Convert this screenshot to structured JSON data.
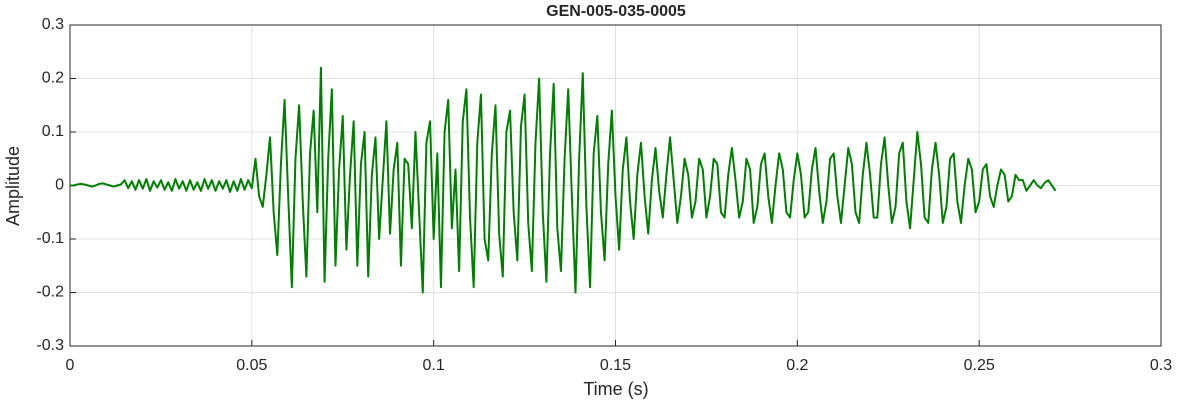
{
  "chart_data": {
    "type": "line",
    "title": "GEN-005-035-0005",
    "xlabel": "Time (s)",
    "ylabel": "Amplitude",
    "color": "#008000",
    "grid": true,
    "xlim": [
      0,
      0.3
    ],
    "xticks": [
      0,
      0.05,
      0.1,
      0.15,
      0.2,
      0.25,
      0.3
    ],
    "ylim": [
      -0.3,
      0.3
    ],
    "yticks": [
      -0.3,
      -0.2,
      -0.1,
      0,
      0.1,
      0.2,
      0.3
    ],
    "x": [
      0,
      0.001,
      0.002,
      0.003,
      0.004,
      0.005,
      0.006,
      0.007,
      0.008,
      0.009,
      0.01,
      0.011,
      0.012,
      0.013,
      0.014,
      0.015,
      0.016,
      0.017,
      0.018,
      0.019,
      0.02,
      0.021,
      0.022,
      0.023,
      0.024,
      0.025,
      0.026,
      0.027,
      0.028,
      0.029,
      0.03,
      0.031,
      0.032,
      0.033,
      0.034,
      0.035,
      0.036,
      0.037,
      0.038,
      0.039,
      0.04,
      0.041,
      0.042,
      0.043,
      0.044,
      0.045,
      0.046,
      0.047,
      0.048,
      0.049,
      0.05,
      0.051,
      0.052,
      0.053,
      0.054,
      0.055,
      0.056,
      0.057,
      0.058,
      0.059,
      0.06,
      0.061,
      0.062,
      0.063,
      0.064,
      0.065,
      0.066,
      0.067,
      0.068,
      0.069,
      0.07,
      0.071,
      0.072,
      0.073,
      0.074,
      0.075,
      0.076,
      0.077,
      0.078,
      0.079,
      0.08,
      0.081,
      0.082,
      0.083,
      0.084,
      0.085,
      0.086,
      0.087,
      0.088,
      0.089,
      0.09,
      0.091,
      0.092,
      0.093,
      0.094,
      0.095,
      0.096,
      0.097,
      0.098,
      0.099,
      0.1,
      0.101,
      0.102,
      0.103,
      0.104,
      0.105,
      0.106,
      0.107,
      0.108,
      0.109,
      0.11,
      0.111,
      0.112,
      0.113,
      0.114,
      0.115,
      0.116,
      0.117,
      0.118,
      0.119,
      0.12,
      0.121,
      0.122,
      0.123,
      0.124,
      0.125,
      0.126,
      0.127,
      0.128,
      0.129,
      0.13,
      0.131,
      0.132,
      0.133,
      0.134,
      0.135,
      0.136,
      0.137,
      0.138,
      0.139,
      0.14,
      0.141,
      0.142,
      0.143,
      0.144,
      0.145,
      0.146,
      0.147,
      0.148,
      0.149,
      0.15,
      0.151,
      0.152,
      0.153,
      0.154,
      0.155,
      0.156,
      0.157,
      0.158,
      0.159,
      0.16,
      0.161,
      0.162,
      0.163,
      0.164,
      0.165,
      0.166,
      0.167,
      0.168,
      0.169,
      0.17,
      0.171,
      0.172,
      0.173,
      0.174,
      0.175,
      0.176,
      0.177,
      0.178,
      0.179,
      0.18,
      0.181,
      0.182,
      0.183,
      0.184,
      0.185,
      0.186,
      0.187,
      0.188,
      0.189,
      0.19,
      0.191,
      0.192,
      0.193,
      0.194,
      0.195,
      0.196,
      0.197,
      0.198,
      0.199,
      0.2,
      0.201,
      0.202,
      0.203,
      0.204,
      0.205,
      0.206,
      0.207,
      0.208,
      0.209,
      0.21,
      0.211,
      0.212,
      0.213,
      0.214,
      0.215,
      0.216,
      0.217,
      0.218,
      0.219,
      0.22,
      0.221,
      0.222,
      0.223,
      0.224,
      0.225,
      0.226,
      0.227,
      0.228,
      0.229,
      0.23,
      0.231,
      0.232,
      0.233,
      0.234,
      0.235,
      0.236,
      0.237,
      0.238,
      0.239,
      0.24,
      0.241,
      0.242,
      0.243,
      0.244,
      0.245,
      0.246,
      0.247,
      0.248,
      0.249,
      0.25,
      0.251,
      0.252,
      0.253,
      0.254,
      0.255,
      0.256,
      0.257,
      0.258,
      0.259,
      0.26,
      0.261,
      0.262,
      0.263,
      0.264,
      0.265,
      0.266,
      0.267,
      0.268,
      0.269,
      0.27,
      0.271
    ],
    "values": [
      0,
      0,
      0.002,
      0.003,
      0.002,
      0,
      -0.002,
      0,
      0.003,
      0.004,
      0.002,
      0,
      -0.002,
      0,
      0.002,
      0.01,
      -0.005,
      0.008,
      -0.008,
      0.01,
      -0.006,
      0.012,
      -0.01,
      0.008,
      -0.004,
      0.01,
      -0.008,
      0.006,
      -0.01,
      0.012,
      -0.006,
      0.008,
      -0.01,
      0.01,
      -0.008,
      0.006,
      -0.01,
      0.012,
      -0.006,
      0.01,
      -0.01,
      0.008,
      -0.006,
      0.01,
      -0.012,
      0.008,
      -0.01,
      0.012,
      -0.008,
      0.01,
      -0.005,
      0.05,
      -0.02,
      -0.04,
      0.02,
      0.09,
      -0.05,
      -0.13,
      0.04,
      0.16,
      -0.02,
      -0.19,
      0.05,
      0.15,
      -0.03,
      -0.17,
      0.06,
      0.14,
      -0.05,
      0.22,
      -0.18,
      0.05,
      0.18,
      -0.15,
      0.03,
      0.13,
      -0.12,
      0.02,
      0.12,
      -0.15,
      0.04,
      0.1,
      -0.17,
      0.02,
      0.09,
      -0.1,
      0.01,
      0.12,
      -0.09,
      0.03,
      0.08,
      -0.15,
      0.05,
      0.04,
      -0.08,
      0.1,
      -0.05,
      -0.2,
      0.08,
      0.12,
      -0.1,
      0.06,
      -0.19,
      0.1,
      0.16,
      -0.08,
      0.03,
      -0.16,
      0.12,
      0.18,
      -0.06,
      -0.19,
      0.08,
      0.17,
      -0.1,
      -0.14,
      0.06,
      0.15,
      -0.09,
      -0.17,
      0.1,
      0.14,
      -0.05,
      -0.14,
      0.11,
      0.17,
      -0.07,
      -0.16,
      0.08,
      0.2,
      -0.05,
      -0.18,
      0.06,
      0.19,
      -0.08,
      -0.16,
      0.05,
      0.18,
      -0.02,
      -0.2,
      0.05,
      0.21,
      -0.04,
      -0.19,
      0.06,
      0.13,
      -0.05,
      -0.14,
      0.04,
      0.14,
      -0.02,
      -0.12,
      0.03,
      0.09,
      -0.03,
      -0.1,
      0.02,
      0.08,
      -0.02,
      -0.09,
      0.01,
      0.07,
      -0.01,
      -0.06,
      0.02,
      0.09,
      0.01,
      -0.07,
      -0.02,
      0.05,
      0.02,
      -0.06,
      -0.03,
      0.05,
      0.03,
      -0.06,
      -0.02,
      0.05,
      0.04,
      -0.05,
      -0.06,
      0.02,
      0.07,
      0.01,
      -0.06,
      -0.03,
      0.05,
      0.03,
      -0.07,
      -0.04,
      0.04,
      0.06,
      -0.02,
      -0.07,
      0,
      0.06,
      0.03,
      -0.05,
      -0.06,
      0.01,
      0.06,
      0.02,
      -0.06,
      -0.05,
      0.03,
      0.07,
      -0.01,
      -0.07,
      -0.03,
      0.05,
      0.06,
      -0.02,
      -0.07,
      0,
      0.07,
      0.04,
      -0.05,
      -0.07,
      0.02,
      0.08,
      0.02,
      -0.06,
      -0.06,
      0.04,
      0.09,
      0,
      -0.07,
      -0.04,
      0.06,
      0.08,
      -0.03,
      -0.08,
      0.01,
      0.1,
      0.04,
      -0.06,
      -0.07,
      0.03,
      0.08,
      0.02,
      -0.07,
      -0.04,
      0.05,
      0.06,
      -0.03,
      -0.07,
      0,
      0.05,
      0.03,
      -0.05,
      -0.03,
      0.03,
      0.04,
      -0.02,
      -0.04,
      0,
      0.03,
      0.02,
      -0.03,
      -0.02,
      0.02,
      0.01,
      0.01,
      -0.01,
      0,
      0.01,
      0,
      -0.005,
      0.005,
      0.01,
      0,
      -0.01
    ]
  }
}
